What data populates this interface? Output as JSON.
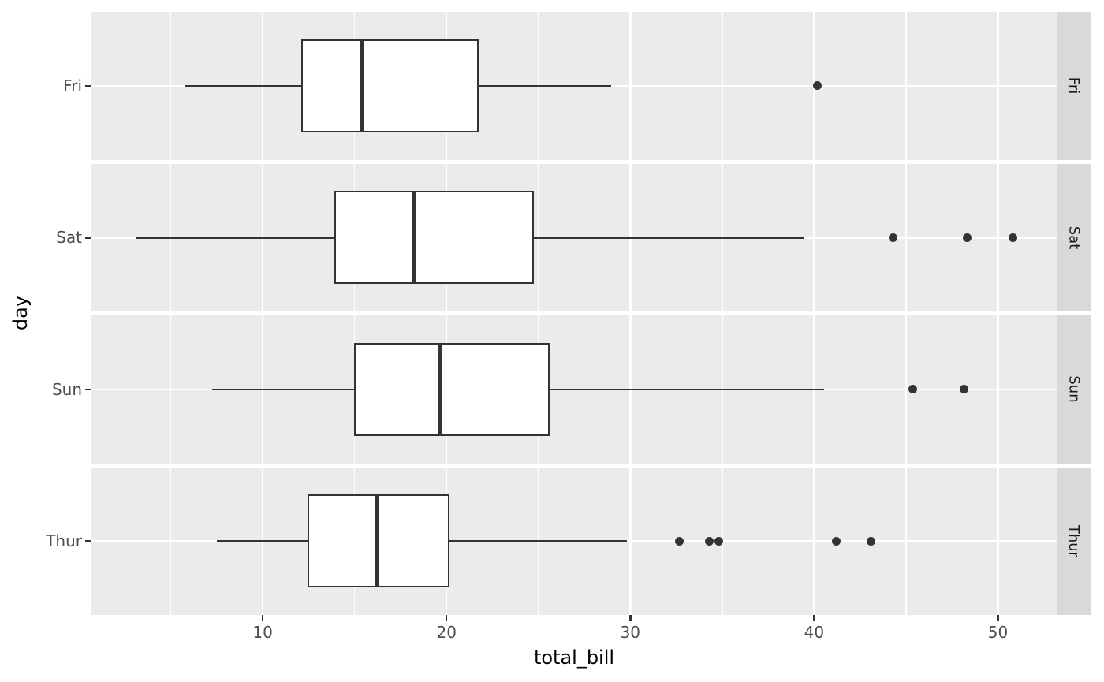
{
  "chart_data": {
    "type": "boxplot",
    "orientation": "horizontal",
    "title": "",
    "xlabel": "total_bill",
    "ylabel": "day",
    "xlim": [
      0.683,
      53.197
    ],
    "x_ticks": [
      10,
      20,
      30,
      40,
      50
    ],
    "x_minor_ticks": [
      5,
      15,
      25,
      35,
      45
    ],
    "grid": "major-and-minor-white-on-grey",
    "legend_position": "none",
    "facet_strip_side": "right",
    "facets": [
      {
        "label": "Fri",
        "whisker_low": 5.75,
        "q1": 12.1,
        "median": 15.38,
        "q3": 21.75,
        "whisker_high": 28.97,
        "outliers": [
          40.17
        ]
      },
      {
        "label": "Sat",
        "whisker_low": 3.07,
        "q1": 13.91,
        "median": 18.24,
        "q3": 24.74,
        "whisker_high": 39.42,
        "outliers": [
          44.3,
          48.33,
          50.81
        ]
      },
      {
        "label": "Sun",
        "whisker_low": 7.25,
        "q1": 14.99,
        "median": 19.63,
        "q3": 25.6,
        "whisker_high": 40.55,
        "outliers": [
          45.35,
          48.17
        ]
      },
      {
        "label": "Thur",
        "whisker_low": 7.51,
        "q1": 12.44,
        "median": 16.2,
        "q3": 20.16,
        "whisker_high": 29.8,
        "outliers": [
          32.68,
          34.3,
          34.83,
          41.19,
          43.11
        ]
      }
    ]
  },
  "colors": {
    "figure_background": "#FFFFFF",
    "panel_background": "#EBEBEB",
    "strip_background": "#D9D9D9",
    "gridline": "#FFFFFF",
    "box_stroke": "#333333",
    "box_fill": "#FFFFFF",
    "median_stroke": "#333333",
    "outlier_fill": "#333333",
    "tick_mark": "#333333",
    "axis_text": "#4D4D4D",
    "strip_text": "#1A1A1A",
    "title_text": "#000000"
  }
}
